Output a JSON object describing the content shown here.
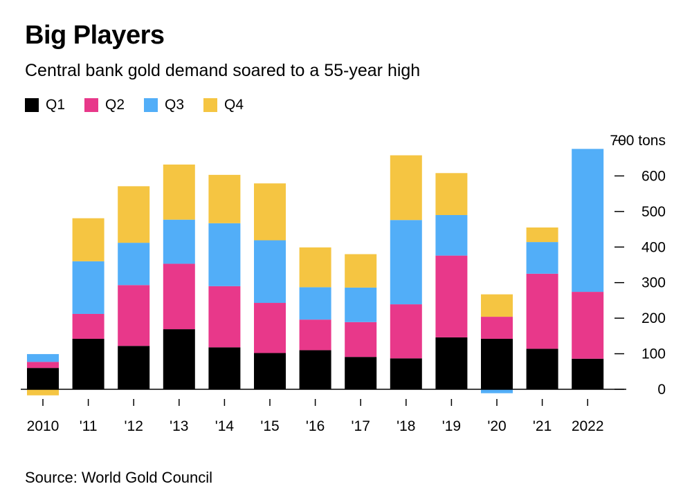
{
  "title": "Big Players",
  "subtitle": "Central bank gold demand soared to a 55-year high",
  "source": "Source: World Gold Council",
  "chart_data": {
    "type": "bar",
    "stacked": true,
    "categories": [
      "2010",
      "'11",
      "'12",
      "'13",
      "'14",
      "'15",
      "'16",
      "'17",
      "'18",
      "'19",
      "'20",
      "'21",
      "2022"
    ],
    "series": [
      {
        "name": "Q1",
        "color": "#000000",
        "values": [
          60,
          142,
          122,
          169,
          118,
          102,
          110,
          91,
          87,
          146,
          142,
          114,
          86
        ]
      },
      {
        "name": "Q2",
        "color": "#e8388a",
        "values": [
          17,
          70,
          171,
          184,
          172,
          141,
          86,
          98,
          152,
          230,
          62,
          211,
          188
        ]
      },
      {
        "name": "Q3",
        "color": "#52aef8",
        "values": [
          22,
          148,
          119,
          124,
          177,
          176,
          91,
          97,
          237,
          114,
          -11,
          89,
          402
        ]
      },
      {
        "name": "Q4",
        "color": "#f5c542",
        "values": [
          -17,
          121,
          159,
          155,
          136,
          160,
          112,
          94,
          182,
          118,
          63,
          41,
          0
        ]
      }
    ],
    "y_axis": {
      "min": 0,
      "max": 700,
      "ticks": [
        0,
        100,
        200,
        300,
        400,
        500,
        600,
        700
      ],
      "unit_label": "700 tons",
      "position": "right"
    },
    "legend_position": "top-left",
    "grid": false,
    "baseline": true
  }
}
